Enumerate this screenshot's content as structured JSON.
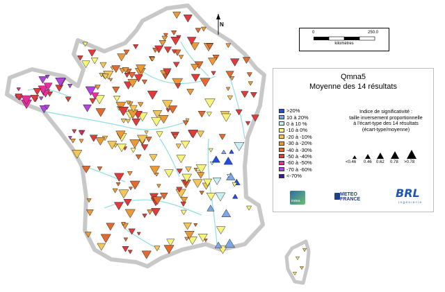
{
  "title": {
    "line1": "Qmna5",
    "line2": "Moyenne des 14 résultats"
  },
  "legend": {
    "classes": [
      {
        "label": ">20%",
        "color": "#1f4fe0"
      },
      {
        "label": "10 à 20%",
        "color": "#7ea6e6"
      },
      {
        "label": "0 à 10 %",
        "color": "#c8f2f2"
      },
      {
        "label": "-10 à 0%",
        "color": "#f6f47a"
      },
      {
        "label": "-20 à -10%",
        "color": "#f2c658"
      },
      {
        "label": "-30 à -20%",
        "color": "#ec9a38"
      },
      {
        "label": "-40 à -30%",
        "color": "#e4692c"
      },
      {
        "label": "-50 à -40%",
        "color": "#e03a3a"
      },
      {
        "label": "-60 à -50%",
        "color": "#e62e9c"
      },
      {
        "label": "-70 à -60%",
        "color": "#b044dc"
      },
      {
        "label": "<-70%",
        "color": "#3a1a9c"
      }
    ]
  },
  "significance": {
    "line1": "Indice de significativité :",
    "line2": "taille inversement proportionnelle",
    "line3": "à l'écart-type des 14 résultats",
    "line4": "(écart-type/moyenne)",
    "ticks": [
      "<0.46",
      "0.46",
      "0.62",
      "0.78",
      ">0.78"
    ]
  },
  "scale": {
    "start": "0",
    "end": "250.0",
    "unit": "kilomètres"
  },
  "north": {
    "label": "N"
  },
  "logos": {
    "cemagref": "irstea",
    "meteo_line1": "METEO",
    "meteo_line2": "FRANCE",
    "brl": "BRL",
    "brl_sub": "ingénierie"
  },
  "colors": {
    "land": "#ffffff",
    "border": "#c8c8c8",
    "rivers": "#8edfe0",
    "stroke": "#222222"
  }
}
